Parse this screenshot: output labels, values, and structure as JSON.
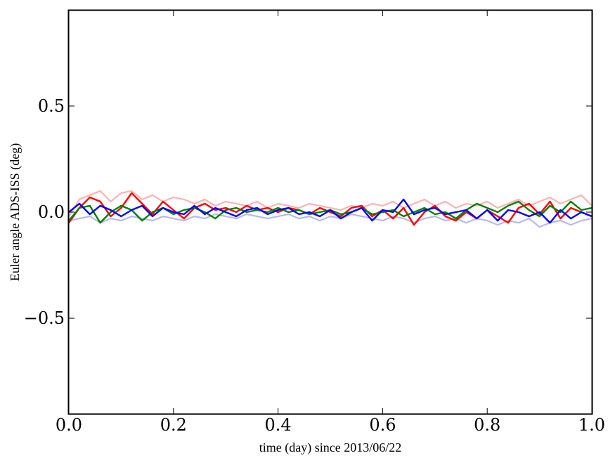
{
  "chart_data": {
    "type": "line",
    "title": "",
    "xlabel": "time (day) since 2013/06/22",
    "ylabel": "Euler angle ADS-ISS (deg)",
    "xlim": [
      0.0,
      1.0
    ],
    "ylim": [
      -0.95,
      0.95
    ],
    "grid": false,
    "xticks": [
      {
        "value": 0.0,
        "label": "0.0"
      },
      {
        "value": 0.2,
        "label": "0.2"
      },
      {
        "value": 0.4,
        "label": "0.4"
      },
      {
        "value": 0.6,
        "label": "0.6"
      },
      {
        "value": 0.8,
        "label": "0.8"
      },
      {
        "value": 1.0,
        "label": "1.0"
      }
    ],
    "yticks": [
      {
        "value": -0.5,
        "label": "−0.5"
      },
      {
        "value": 0.0,
        "label": "0.0"
      },
      {
        "value": 0.5,
        "label": "0.5"
      }
    ],
    "x": [
      0.0,
      0.02,
      0.04,
      0.06,
      0.08,
      0.1,
      0.12,
      0.14,
      0.16,
      0.18,
      0.2,
      0.22,
      0.24,
      0.26,
      0.28,
      0.3,
      0.32,
      0.34,
      0.36,
      0.38,
      0.4,
      0.42,
      0.44,
      0.46,
      0.48,
      0.5,
      0.52,
      0.54,
      0.56,
      0.58,
      0.6,
      0.62,
      0.64,
      0.66,
      0.68,
      0.7,
      0.72,
      0.74,
      0.76,
      0.78,
      0.8,
      0.82,
      0.84,
      0.86,
      0.88,
      0.9,
      0.92,
      0.94,
      0.96,
      0.98,
      1.0
    ],
    "series": [
      {
        "color": "#ffb3b3",
        "width": 2.2,
        "values": [
          -0.02,
          0.06,
          0.08,
          0.1,
          0.05,
          0.09,
          0.1,
          0.06,
          0.08,
          0.05,
          0.07,
          0.06,
          0.04,
          0.06,
          0.03,
          0.05,
          0.04,
          0.03,
          0.05,
          0.02,
          0.04,
          0.03,
          0.02,
          0.04,
          0.03,
          0.02,
          0.01,
          0.03,
          0.02,
          0.04,
          0.03,
          0.05,
          0.02,
          0.04,
          0.06,
          0.03,
          0.05,
          0.02,
          0.04,
          0.03,
          0.05,
          0.02,
          0.04,
          0.06,
          0.03,
          0.05,
          0.07,
          0.04,
          0.06,
          0.08,
          0.03
        ]
      },
      {
        "color": "#b8b8f0",
        "width": 2.2,
        "values": [
          -0.04,
          -0.03,
          -0.02,
          -0.05,
          -0.03,
          -0.04,
          -0.02,
          -0.03,
          -0.04,
          -0.02,
          -0.03,
          -0.04,
          -0.02,
          -0.03,
          -0.01,
          -0.02,
          -0.03,
          -0.01,
          -0.02,
          -0.03,
          -0.02,
          -0.01,
          -0.03,
          -0.02,
          -0.04,
          -0.02,
          -0.03,
          -0.01,
          -0.02,
          -0.03,
          -0.04,
          -0.02,
          -0.03,
          -0.05,
          -0.03,
          -0.02,
          -0.04,
          -0.03,
          -0.05,
          -0.03,
          -0.04,
          -0.06,
          -0.04,
          -0.05,
          -0.03,
          -0.07,
          -0.05,
          -0.04,
          -0.06,
          -0.04,
          -0.03
        ]
      },
      {
        "color": "#ff0000",
        "width": 2.4,
        "values": [
          -0.05,
          0.02,
          0.07,
          0.05,
          -0.02,
          0.02,
          0.09,
          0.04,
          -0.01,
          0.05,
          0.01,
          -0.03,
          0.02,
          0.04,
          0.01,
          0.02,
          0.0,
          0.03,
          0.01,
          0.02,
          0.0,
          0.02,
          0.01,
          -0.01,
          0.02,
          0.0,
          -0.02,
          0.02,
          0.03,
          -0.02,
          0.01,
          -0.03,
          0.02,
          -0.06,
          0.0,
          0.03,
          -0.02,
          -0.04,
          0.0,
          -0.03,
          0.01,
          -0.02,
          -0.05,
          0.02,
          0.04,
          -0.01,
          0.05,
          -0.03,
          0.02,
          0.0,
          -0.02
        ]
      },
      {
        "color": "#008000",
        "width": 2.4,
        "values": [
          -0.04,
          0.02,
          0.03,
          -0.05,
          0.0,
          0.03,
          0.01,
          -0.04,
          0.0,
          0.02,
          -0.01,
          0.01,
          0.02,
          0.0,
          -0.03,
          0.01,
          0.02,
          0.0,
          0.01,
          0.0,
          0.02,
          0.0,
          0.01,
          -0.01,
          0.0,
          0.01,
          -0.01,
          0.0,
          0.02,
          -0.01,
          0.0,
          0.01,
          -0.02,
          0.0,
          0.02,
          -0.01,
          0.0,
          -0.03,
          0.01,
          0.04,
          0.02,
          0.0,
          0.03,
          0.05,
          0.01,
          -0.02,
          0.03,
          0.0,
          0.05,
          0.01,
          0.02
        ]
      },
      {
        "color": "#0000ff",
        "width": 2.4,
        "values": [
          0.0,
          0.04,
          -0.01,
          0.03,
          0.01,
          -0.02,
          0.01,
          0.03,
          -0.02,
          0.02,
          0.0,
          -0.01,
          0.03,
          -0.01,
          0.02,
          0.0,
          -0.02,
          0.01,
          0.02,
          -0.01,
          0.01,
          0.02,
          -0.01,
          0.0,
          -0.02,
          0.01,
          -0.03,
          0.0,
          0.02,
          -0.04,
          0.01,
          0.0,
          0.06,
          -0.01,
          0.01,
          0.02,
          -0.01,
          0.0,
          0.01,
          -0.03,
          0.01,
          -0.04,
          0.01,
          0.0,
          -0.02,
          0.0,
          -0.05,
          0.01,
          -0.03,
          0.0,
          -0.02
        ]
      }
    ]
  }
}
